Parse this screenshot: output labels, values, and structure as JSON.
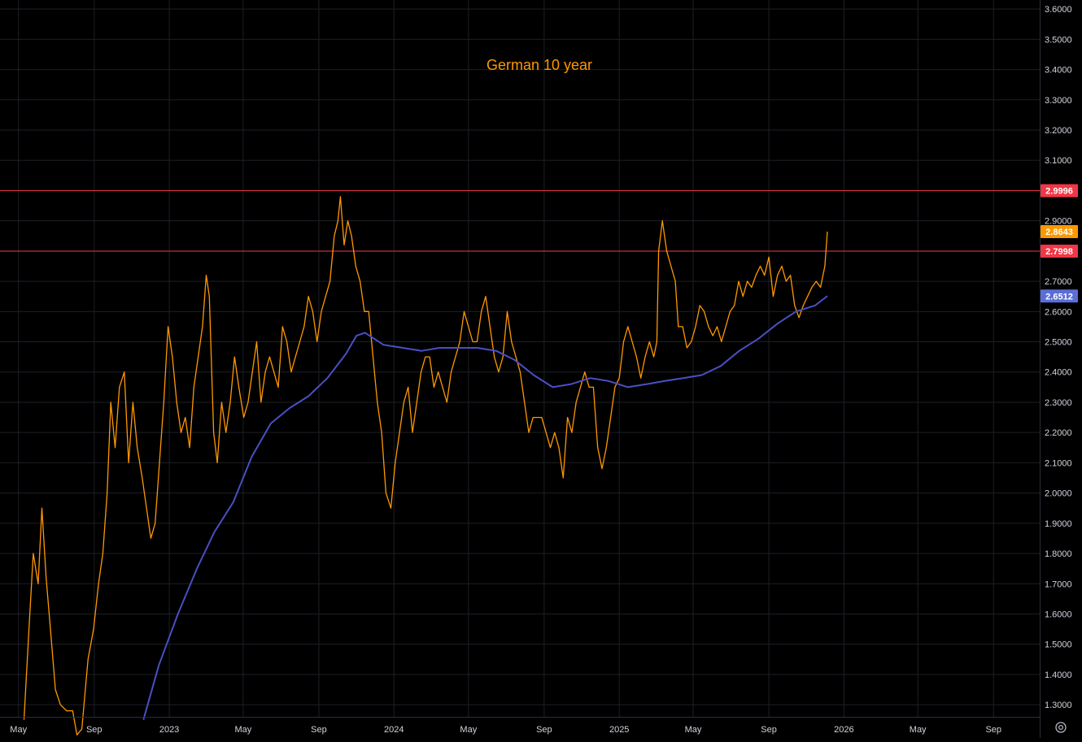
{
  "chart_data": {
    "type": "line",
    "title": "German 10 year",
    "xlabel": "",
    "ylabel": "",
    "ylim": [
      1.26,
      3.63
    ],
    "xlim": [
      "2022-04-01",
      "2026-11-15"
    ],
    "grid": true,
    "y_ticks": [
      "1.3000",
      "1.4000",
      "1.5000",
      "1.6000",
      "1.7000",
      "1.8000",
      "1.9000",
      "2.0000",
      "2.1000",
      "2.2000",
      "2.3000",
      "2.4000",
      "2.5000",
      "2.6000",
      "2.7000",
      "2.8000",
      "2.9000",
      "3.0000",
      "3.1000",
      "3.2000",
      "3.3000",
      "3.4000",
      "3.5000",
      "3.6000"
    ],
    "x_ticks": [
      {
        "label": "May",
        "date": "2022-05-01"
      },
      {
        "label": "Sep",
        "date": "2022-09-01"
      },
      {
        "label": "2023",
        "date": "2023-01-01"
      },
      {
        "label": "May",
        "date": "2023-05-01"
      },
      {
        "label": "Sep",
        "date": "2023-09-01"
      },
      {
        "label": "2024",
        "date": "2024-01-01"
      },
      {
        "label": "May",
        "date": "2024-05-01"
      },
      {
        "label": "Sep",
        "date": "2024-09-01"
      },
      {
        "label": "2025",
        "date": "2025-01-01"
      },
      {
        "label": "May",
        "date": "2025-05-01"
      },
      {
        "label": "Sep",
        "date": "2025-09-01"
      },
      {
        "label": "2026",
        "date": "2026-01-01"
      },
      {
        "label": "May",
        "date": "2026-05-01"
      },
      {
        "label": "Sep",
        "date": "2026-09-01"
      }
    ],
    "series": [
      {
        "role": "price",
        "color": "#ff9800",
        "points": [
          [
            "2022-05-10",
            1.25
          ],
          [
            "2022-05-18",
            1.55
          ],
          [
            "2022-05-25",
            1.8
          ],
          [
            "2022-06-02",
            1.7
          ],
          [
            "2022-06-08",
            1.95
          ],
          [
            "2022-06-15",
            1.72
          ],
          [
            "2022-06-22",
            1.55
          ],
          [
            "2022-06-30",
            1.35
          ],
          [
            "2022-07-08",
            1.3
          ],
          [
            "2022-07-18",
            1.28
          ],
          [
            "2022-07-28",
            1.28
          ],
          [
            "2022-08-04",
            1.2
          ],
          [
            "2022-08-12",
            1.22
          ],
          [
            "2022-08-22",
            1.45
          ],
          [
            "2022-08-31",
            1.55
          ],
          [
            "2022-09-08",
            1.7
          ],
          [
            "2022-09-15",
            1.8
          ],
          [
            "2022-09-22",
            2.0
          ],
          [
            "2022-09-28",
            2.3
          ],
          [
            "2022-10-05",
            2.15
          ],
          [
            "2022-10-12",
            2.35
          ],
          [
            "2022-10-20",
            2.4
          ],
          [
            "2022-10-27",
            2.1
          ],
          [
            "2022-11-03",
            2.3
          ],
          [
            "2022-11-10",
            2.15
          ],
          [
            "2022-11-18",
            2.05
          ],
          [
            "2022-11-25",
            1.95
          ],
          [
            "2022-12-02",
            1.85
          ],
          [
            "2022-12-09",
            1.9
          ],
          [
            "2022-12-16",
            2.1
          ],
          [
            "2022-12-23",
            2.3
          ],
          [
            "2022-12-30",
            2.55
          ],
          [
            "2023-01-06",
            2.45
          ],
          [
            "2023-01-13",
            2.3
          ],
          [
            "2023-01-20",
            2.2
          ],
          [
            "2023-01-27",
            2.25
          ],
          [
            "2023-02-03",
            2.15
          ],
          [
            "2023-02-10",
            2.35
          ],
          [
            "2023-02-17",
            2.45
          ],
          [
            "2023-02-24",
            2.55
          ],
          [
            "2023-03-02",
            2.72
          ],
          [
            "2023-03-07",
            2.65
          ],
          [
            "2023-03-14",
            2.2
          ],
          [
            "2023-03-20",
            2.1
          ],
          [
            "2023-03-27",
            2.3
          ],
          [
            "2023-04-03",
            2.2
          ],
          [
            "2023-04-10",
            2.3
          ],
          [
            "2023-04-17",
            2.45
          ],
          [
            "2023-04-24",
            2.35
          ],
          [
            "2023-05-02",
            2.25
          ],
          [
            "2023-05-09",
            2.3
          ],
          [
            "2023-05-16",
            2.4
          ],
          [
            "2023-05-23",
            2.5
          ],
          [
            "2023-05-30",
            2.3
          ],
          [
            "2023-06-06",
            2.4
          ],
          [
            "2023-06-13",
            2.45
          ],
          [
            "2023-06-20",
            2.4
          ],
          [
            "2023-06-27",
            2.35
          ],
          [
            "2023-07-04",
            2.55
          ],
          [
            "2023-07-11",
            2.5
          ],
          [
            "2023-07-18",
            2.4
          ],
          [
            "2023-07-25",
            2.45
          ],
          [
            "2023-08-01",
            2.5
          ],
          [
            "2023-08-08",
            2.55
          ],
          [
            "2023-08-15",
            2.65
          ],
          [
            "2023-08-22",
            2.6
          ],
          [
            "2023-08-29",
            2.5
          ],
          [
            "2023-09-05",
            2.6
          ],
          [
            "2023-09-12",
            2.65
          ],
          [
            "2023-09-19",
            2.7
          ],
          [
            "2023-09-26",
            2.85
          ],
          [
            "2023-10-02",
            2.9
          ],
          [
            "2023-10-06",
            2.98
          ],
          [
            "2023-10-12",
            2.82
          ],
          [
            "2023-10-18",
            2.9
          ],
          [
            "2023-10-24",
            2.85
          ],
          [
            "2023-10-31",
            2.75
          ],
          [
            "2023-11-07",
            2.7
          ],
          [
            "2023-11-14",
            2.6
          ],
          [
            "2023-11-21",
            2.6
          ],
          [
            "2023-11-28",
            2.45
          ],
          [
            "2023-12-05",
            2.3
          ],
          [
            "2023-12-12",
            2.2
          ],
          [
            "2023-12-19",
            2.0
          ],
          [
            "2023-12-27",
            1.95
          ],
          [
            "2024-01-03",
            2.1
          ],
          [
            "2024-01-10",
            2.2
          ],
          [
            "2024-01-17",
            2.3
          ],
          [
            "2024-01-24",
            2.35
          ],
          [
            "2024-01-31",
            2.2
          ],
          [
            "2024-02-07",
            2.3
          ],
          [
            "2024-02-14",
            2.4
          ],
          [
            "2024-02-21",
            2.45
          ],
          [
            "2024-02-28",
            2.45
          ],
          [
            "2024-03-06",
            2.35
          ],
          [
            "2024-03-13",
            2.4
          ],
          [
            "2024-03-20",
            2.35
          ],
          [
            "2024-03-27",
            2.3
          ],
          [
            "2024-04-03",
            2.4
          ],
          [
            "2024-04-10",
            2.45
          ],
          [
            "2024-04-17",
            2.5
          ],
          [
            "2024-04-24",
            2.6
          ],
          [
            "2024-05-01",
            2.55
          ],
          [
            "2024-05-08",
            2.5
          ],
          [
            "2024-05-15",
            2.5
          ],
          [
            "2024-05-22",
            2.6
          ],
          [
            "2024-05-29",
            2.65
          ],
          [
            "2024-06-05",
            2.55
          ],
          [
            "2024-06-12",
            2.45
          ],
          [
            "2024-06-19",
            2.4
          ],
          [
            "2024-06-26",
            2.45
          ],
          [
            "2024-07-03",
            2.6
          ],
          [
            "2024-07-10",
            2.5
          ],
          [
            "2024-07-17",
            2.45
          ],
          [
            "2024-07-24",
            2.4
          ],
          [
            "2024-07-31",
            2.3
          ],
          [
            "2024-08-07",
            2.2
          ],
          [
            "2024-08-14",
            2.25
          ],
          [
            "2024-08-21",
            2.25
          ],
          [
            "2024-08-28",
            2.25
          ],
          [
            "2024-09-04",
            2.2
          ],
          [
            "2024-09-11",
            2.15
          ],
          [
            "2024-09-18",
            2.2
          ],
          [
            "2024-09-25",
            2.15
          ],
          [
            "2024-10-02",
            2.05
          ],
          [
            "2024-10-09",
            2.25
          ],
          [
            "2024-10-16",
            2.2
          ],
          [
            "2024-10-23",
            2.3
          ],
          [
            "2024-10-30",
            2.35
          ],
          [
            "2024-11-06",
            2.4
          ],
          [
            "2024-11-13",
            2.35
          ],
          [
            "2024-11-20",
            2.35
          ],
          [
            "2024-11-27",
            2.15
          ],
          [
            "2024-12-04",
            2.08
          ],
          [
            "2024-12-11",
            2.15
          ],
          [
            "2024-12-18",
            2.25
          ],
          [
            "2024-12-25",
            2.35
          ],
          [
            "2025-01-01",
            2.38
          ],
          [
            "2025-01-08",
            2.5
          ],
          [
            "2025-01-15",
            2.55
          ],
          [
            "2025-01-22",
            2.5
          ],
          [
            "2025-01-29",
            2.45
          ],
          [
            "2025-02-05",
            2.38
          ],
          [
            "2025-02-12",
            2.45
          ],
          [
            "2025-02-19",
            2.5
          ],
          [
            "2025-02-26",
            2.45
          ],
          [
            "2025-03-03",
            2.5
          ],
          [
            "2025-03-06",
            2.8
          ],
          [
            "2025-03-12",
            2.9
          ],
          [
            "2025-03-19",
            2.8
          ],
          [
            "2025-03-26",
            2.75
          ],
          [
            "2025-04-02",
            2.7
          ],
          [
            "2025-04-07",
            2.55
          ],
          [
            "2025-04-14",
            2.55
          ],
          [
            "2025-04-21",
            2.48
          ],
          [
            "2025-04-28",
            2.5
          ],
          [
            "2025-05-05",
            2.55
          ],
          [
            "2025-05-12",
            2.62
          ],
          [
            "2025-05-19",
            2.6
          ],
          [
            "2025-05-26",
            2.55
          ],
          [
            "2025-06-02",
            2.52
          ],
          [
            "2025-06-09",
            2.55
          ],
          [
            "2025-06-16",
            2.5
          ],
          [
            "2025-06-23",
            2.55
          ],
          [
            "2025-06-30",
            2.6
          ],
          [
            "2025-07-07",
            2.62
          ],
          [
            "2025-07-14",
            2.7
          ],
          [
            "2025-07-21",
            2.65
          ],
          [
            "2025-07-28",
            2.7
          ],
          [
            "2025-08-04",
            2.68
          ],
          [
            "2025-08-11",
            2.72
          ],
          [
            "2025-08-18",
            2.75
          ],
          [
            "2025-08-25",
            2.72
          ],
          [
            "2025-09-01",
            2.78
          ],
          [
            "2025-09-08",
            2.65
          ],
          [
            "2025-09-15",
            2.72
          ],
          [
            "2025-09-22",
            2.75
          ],
          [
            "2025-09-29",
            2.7
          ],
          [
            "2025-10-06",
            2.72
          ],
          [
            "2025-10-13",
            2.62
          ],
          [
            "2025-10-20",
            2.58
          ],
          [
            "2025-10-27",
            2.62
          ],
          [
            "2025-11-03",
            2.65
          ],
          [
            "2025-11-10",
            2.68
          ],
          [
            "2025-11-17",
            2.7
          ],
          [
            "2025-11-24",
            2.68
          ],
          [
            "2025-12-01",
            2.75
          ],
          [
            "2025-12-05",
            2.8643
          ]
        ]
      },
      {
        "role": "moving-average",
        "color": "#4a4fc4",
        "points": [
          [
            "2022-11-20",
            1.25
          ],
          [
            "2022-12-15",
            1.43
          ],
          [
            "2023-01-15",
            1.6
          ],
          [
            "2023-02-15",
            1.75
          ],
          [
            "2023-03-15",
            1.87
          ],
          [
            "2023-04-15",
            1.97
          ],
          [
            "2023-05-15",
            2.12
          ],
          [
            "2023-06-15",
            2.23
          ],
          [
            "2023-07-15",
            2.28
          ],
          [
            "2023-08-15",
            2.32
          ],
          [
            "2023-09-15",
            2.38
          ],
          [
            "2023-10-15",
            2.46
          ],
          [
            "2023-11-01",
            2.52
          ],
          [
            "2023-11-15",
            2.53
          ],
          [
            "2023-12-15",
            2.49
          ],
          [
            "2024-01-15",
            2.48
          ],
          [
            "2024-02-15",
            2.47
          ],
          [
            "2024-03-15",
            2.48
          ],
          [
            "2024-04-15",
            2.48
          ],
          [
            "2024-05-15",
            2.48
          ],
          [
            "2024-06-15",
            2.47
          ],
          [
            "2024-07-15",
            2.44
          ],
          [
            "2024-08-15",
            2.39
          ],
          [
            "2024-09-15",
            2.35
          ],
          [
            "2024-10-15",
            2.36
          ],
          [
            "2024-11-15",
            2.38
          ],
          [
            "2024-12-15",
            2.37
          ],
          [
            "2025-01-15",
            2.35
          ],
          [
            "2025-02-15",
            2.36
          ],
          [
            "2025-03-15",
            2.37
          ],
          [
            "2025-04-15",
            2.38
          ],
          [
            "2025-05-15",
            2.39
          ],
          [
            "2025-06-15",
            2.42
          ],
          [
            "2025-07-15",
            2.47
          ],
          [
            "2025-08-15",
            2.51
          ],
          [
            "2025-09-15",
            2.56
          ],
          [
            "2025-10-15",
            2.6
          ],
          [
            "2025-11-15",
            2.62
          ],
          [
            "2025-12-05",
            2.6512
          ]
        ]
      }
    ],
    "horizontal_lines": [
      {
        "value": "2.9996",
        "color": "#f23645"
      },
      {
        "value": "2.7998",
        "color": "#f23645"
      }
    ],
    "price_labels": [
      {
        "text": "2.9996",
        "value": 2.9996,
        "bg": "#f23645",
        "fg": "#ffffff"
      },
      {
        "text": "2.8643",
        "value": 2.8643,
        "bg": "#ff9800",
        "fg": "#ffffff"
      },
      {
        "text": "2.7998",
        "value": 2.7998,
        "bg": "#f23645",
        "fg": "#ffffff"
      },
      {
        "text": "2.6512",
        "value": 2.6512,
        "bg": "#5b6dd8",
        "fg": "#ffffff"
      }
    ],
    "title_color": "#ff9800",
    "axis_text_color": "#d1d4dc",
    "grid_color": "#1c1f26",
    "settings_icon": "gear-icon"
  }
}
